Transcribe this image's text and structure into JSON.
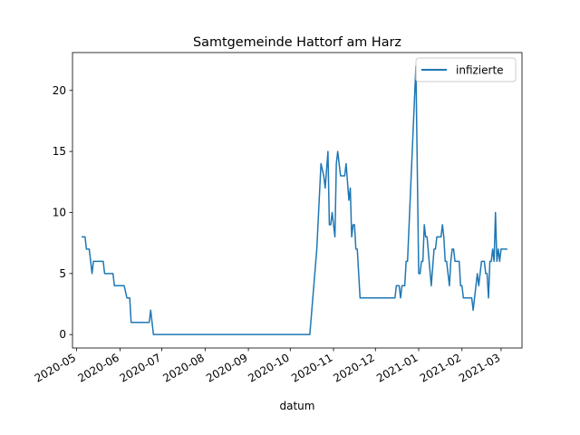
{
  "chart_data": {
    "type": "line",
    "title": "Samtgemeinde Hattorf am Harz",
    "xlabel": "datum",
    "ylabel": "",
    "legend_position": "upper right",
    "grid": false,
    "xlim": [
      "2020-04-28",
      "2021-03-16"
    ],
    "ylim": [
      -1.1,
      23.1
    ],
    "yticks": [
      0,
      5,
      10,
      15,
      20
    ],
    "xticks": [
      {
        "date": "2020-05-01",
        "label": "2020-05"
      },
      {
        "date": "2020-06-01",
        "label": "2020-06"
      },
      {
        "date": "2020-07-01",
        "label": "2020-07"
      },
      {
        "date": "2020-08-01",
        "label": "2020-08"
      },
      {
        "date": "2020-09-01",
        "label": "2020-09"
      },
      {
        "date": "2020-10-01",
        "label": "2020-10"
      },
      {
        "date": "2020-11-01",
        "label": "2020-11"
      },
      {
        "date": "2020-12-01",
        "label": "2020-12"
      },
      {
        "date": "2021-01-01",
        "label": "2021-01"
      },
      {
        "date": "2021-02-01",
        "label": "2021-02"
      },
      {
        "date": "2021-03-01",
        "label": "2021-03"
      }
    ],
    "series": [
      {
        "name": "infizierte",
        "color": "#1f77b4",
        "points": [
          [
            "2020-05-05",
            8
          ],
          [
            "2020-05-07",
            8
          ],
          [
            "2020-05-08",
            7
          ],
          [
            "2020-05-10",
            7
          ],
          [
            "2020-05-12",
            5
          ],
          [
            "2020-05-13",
            6
          ],
          [
            "2020-05-20",
            6
          ],
          [
            "2020-05-21",
            5
          ],
          [
            "2020-05-27",
            5
          ],
          [
            "2020-05-28",
            4
          ],
          [
            "2020-06-04",
            4
          ],
          [
            "2020-06-06",
            3
          ],
          [
            "2020-06-08",
            3
          ],
          [
            "2020-06-09",
            1
          ],
          [
            "2020-06-22",
            1
          ],
          [
            "2020-06-23",
            2
          ],
          [
            "2020-06-24",
            1
          ],
          [
            "2020-06-25",
            0
          ],
          [
            "2020-10-15",
            0
          ],
          [
            "2020-10-20",
            7
          ],
          [
            "2020-10-23",
            14
          ],
          [
            "2020-10-25",
            13
          ],
          [
            "2020-10-26",
            12
          ],
          [
            "2020-10-28",
            15
          ],
          [
            "2020-10-29",
            9
          ],
          [
            "2020-10-30",
            9
          ],
          [
            "2020-10-31",
            10
          ],
          [
            "2020-11-02",
            8
          ],
          [
            "2020-11-03",
            14
          ],
          [
            "2020-11-04",
            15
          ],
          [
            "2020-11-05",
            14
          ],
          [
            "2020-11-06",
            13
          ],
          [
            "2020-11-09",
            13
          ],
          [
            "2020-11-10",
            14
          ],
          [
            "2020-11-12",
            11
          ],
          [
            "2020-11-13",
            12
          ],
          [
            "2020-11-14",
            8
          ],
          [
            "2020-11-15",
            9
          ],
          [
            "2020-11-16",
            9
          ],
          [
            "2020-11-17",
            7
          ],
          [
            "2020-11-18",
            7
          ],
          [
            "2020-11-20",
            3
          ],
          [
            "2020-12-15",
            3
          ],
          [
            "2020-12-16",
            4
          ],
          [
            "2020-12-18",
            4
          ],
          [
            "2020-12-19",
            3
          ],
          [
            "2020-12-20",
            4
          ],
          [
            "2020-12-22",
            4
          ],
          [
            "2020-12-23",
            6
          ],
          [
            "2020-12-24",
            6
          ],
          [
            "2020-12-30",
            22
          ],
          [
            "2021-01-01",
            5
          ],
          [
            "2021-01-02",
            5
          ],
          [
            "2021-01-03",
            6
          ],
          [
            "2021-01-04",
            6
          ],
          [
            "2021-01-05",
            9
          ],
          [
            "2021-01-06",
            8
          ],
          [
            "2021-01-07",
            8
          ],
          [
            "2021-01-10",
            4
          ],
          [
            "2021-01-12",
            7
          ],
          [
            "2021-01-13",
            7
          ],
          [
            "2021-01-14",
            8
          ],
          [
            "2021-01-17",
            8
          ],
          [
            "2021-01-18",
            9
          ],
          [
            "2021-01-19",
            8
          ],
          [
            "2021-01-20",
            6
          ],
          [
            "2021-01-21",
            6
          ],
          [
            "2021-01-23",
            4
          ],
          [
            "2021-01-24",
            6
          ],
          [
            "2021-01-25",
            7
          ],
          [
            "2021-01-26",
            7
          ],
          [
            "2021-01-27",
            6
          ],
          [
            "2021-01-30",
            6
          ],
          [
            "2021-01-31",
            4
          ],
          [
            "2021-02-01",
            4
          ],
          [
            "2021-02-02",
            3
          ],
          [
            "2021-02-08",
            3
          ],
          [
            "2021-02-09",
            2
          ],
          [
            "2021-02-10",
            3
          ],
          [
            "2021-02-12",
            5
          ],
          [
            "2021-02-13",
            4
          ],
          [
            "2021-02-15",
            6
          ],
          [
            "2021-02-17",
            6
          ],
          [
            "2021-02-18",
            5
          ],
          [
            "2021-02-19",
            5
          ],
          [
            "2021-02-20",
            3
          ],
          [
            "2021-02-21",
            6
          ],
          [
            "2021-02-22",
            6
          ],
          [
            "2021-02-23",
            7
          ],
          [
            "2021-02-24",
            6
          ],
          [
            "2021-02-25",
            10
          ],
          [
            "2021-02-26",
            6
          ],
          [
            "2021-02-27",
            7
          ],
          [
            "2021-02-28",
            6
          ],
          [
            "2021-03-01",
            7
          ],
          [
            "2021-03-05",
            7
          ]
        ]
      }
    ]
  }
}
